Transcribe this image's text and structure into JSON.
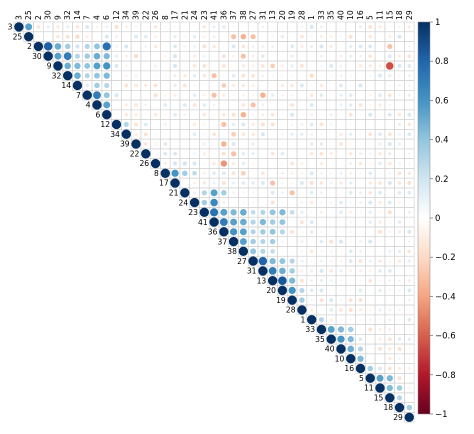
{
  "chart_data": {
    "type": "heatmap",
    "style": "corrplot-circle-upper-triangle",
    "variables": [
      "3",
      "25",
      "2",
      "30",
      "9",
      "32",
      "14",
      "7",
      "4",
      "6",
      "12",
      "34",
      "39",
      "22",
      "26",
      "8",
      "17",
      "21",
      "24",
      "23",
      "41",
      "36",
      "37",
      "38",
      "27",
      "31",
      "13",
      "20",
      "19",
      "28",
      "1",
      "33",
      "35",
      "40",
      "10",
      "16",
      "5",
      "11",
      "15",
      "18",
      "29"
    ],
    "colorbar": {
      "min": -1,
      "max": 1,
      "ticks": [
        1,
        0.8,
        0.6,
        0.4,
        0.2,
        0,
        -0.2,
        -0.4,
        -0.6,
        -0.8,
        -1
      ],
      "tick_labels": [
        "1",
        "0.8",
        "0.6",
        "0.4",
        "0.2",
        "0",
        "−0.2",
        "−0.4",
        "−0.6",
        "−0.8",
        "−1"
      ],
      "positive_color": "#053061",
      "neutral_color": "#ffffff",
      "negative_color": "#67001f"
    },
    "grid": true,
    "legend_position": "right",
    "correlations": [
      [
        0,
        1,
        0.55
      ],
      [
        2,
        3,
        0.82
      ],
      [
        2,
        4,
        0.5
      ],
      [
        2,
        5,
        0.35
      ],
      [
        2,
        6,
        0.2
      ],
      [
        2,
        7,
        0.3
      ],
      [
        2,
        8,
        0.4
      ],
      [
        2,
        9,
        0.75
      ],
      [
        3,
        4,
        0.55
      ],
      [
        3,
        5,
        0.7
      ],
      [
        3,
        6,
        0.3
      ],
      [
        3,
        7,
        0.35
      ],
      [
        3,
        8,
        0.5
      ],
      [
        3,
        9,
        0.45
      ],
      [
        4,
        5,
        0.5
      ],
      [
        4,
        6,
        0.45
      ],
      [
        4,
        7,
        0.4
      ],
      [
        4,
        8,
        0.55
      ],
      [
        4,
        9,
        0.6
      ],
      [
        5,
        6,
        0.5
      ],
      [
        5,
        7,
        0.3
      ],
      [
        5,
        8,
        0.4
      ],
      [
        5,
        9,
        0.45
      ],
      [
        6,
        8,
        0.35
      ],
      [
        6,
        9,
        0.3
      ],
      [
        7,
        8,
        0.7
      ],
      [
        7,
        9,
        0.4
      ],
      [
        8,
        9,
        0.55
      ],
      [
        10,
        11,
        0.3
      ],
      [
        14,
        17,
        0.2
      ],
      [
        15,
        16,
        0.6
      ],
      [
        15,
        17,
        0.35
      ],
      [
        15,
        18,
        0.25
      ],
      [
        17,
        19,
        0.3
      ],
      [
        17,
        20,
        0.55
      ],
      [
        17,
        21,
        0.35
      ],
      [
        18,
        19,
        0.35
      ],
      [
        18,
        20,
        0.65
      ],
      [
        19,
        20,
        0.75
      ],
      [
        19,
        21,
        0.55
      ],
      [
        19,
        22,
        0.45
      ],
      [
        19,
        23,
        0.5
      ],
      [
        19,
        24,
        0.25
      ],
      [
        19,
        25,
        0.3
      ],
      [
        19,
        26,
        0.4
      ],
      [
        19,
        27,
        0.45
      ],
      [
        19,
        28,
        0.25
      ],
      [
        20,
        21,
        0.7
      ],
      [
        20,
        22,
        0.55
      ],
      [
        20,
        23,
        0.5
      ],
      [
        20,
        24,
        0.3
      ],
      [
        20,
        25,
        0.45
      ],
      [
        20,
        26,
        0.35
      ],
      [
        20,
        27,
        0.4
      ],
      [
        21,
        22,
        0.6
      ],
      [
        21,
        23,
        0.55
      ],
      [
        21,
        24,
        0.3
      ],
      [
        21,
        25,
        0.35
      ],
      [
        21,
        26,
        0.4
      ],
      [
        21,
        27,
        0.3
      ],
      [
        22,
        23,
        0.55
      ],
      [
        22,
        24,
        0.35
      ],
      [
        22,
        25,
        0.3
      ],
      [
        22,
        26,
        0.35
      ],
      [
        23,
        24,
        0.4
      ],
      [
        23,
        25,
        0.3
      ],
      [
        23,
        26,
        0.25
      ],
      [
        24,
        25,
        0.8
      ],
      [
        24,
        26,
        0.45
      ],
      [
        24,
        27,
        0.4
      ],
      [
        24,
        28,
        0.3
      ],
      [
        25,
        26,
        0.7
      ],
      [
        25,
        27,
        0.5
      ],
      [
        25,
        28,
        0.35
      ],
      [
        26,
        27,
        0.85
      ],
      [
        26,
        28,
        0.45
      ],
      [
        27,
        28,
        0.6
      ],
      [
        27,
        29,
        0.3
      ],
      [
        28,
        29,
        0.35
      ],
      [
        30,
        31,
        0.3
      ],
      [
        31,
        32,
        0.55
      ],
      [
        31,
        33,
        0.45
      ],
      [
        31,
        34,
        0.35
      ],
      [
        32,
        33,
        0.6
      ],
      [
        32,
        34,
        0.45
      ],
      [
        33,
        34,
        0.5
      ],
      [
        33,
        35,
        0.3
      ],
      [
        34,
        35,
        0.45
      ],
      [
        35,
        36,
        0.35
      ],
      [
        36,
        37,
        0.55
      ],
      [
        36,
        38,
        0.45
      ],
      [
        37,
        38,
        0.45
      ],
      [
        37,
        39,
        0.35
      ],
      [
        38,
        39,
        0.3
      ],
      [
        39,
        40,
        0.35
      ],
      [
        0,
        2,
        -0.15
      ],
      [
        1,
        6,
        -0.2
      ],
      [
        1,
        22,
        -0.3
      ],
      [
        1,
        23,
        -0.35
      ],
      [
        1,
        24,
        -0.3
      ],
      [
        3,
        12,
        -0.2
      ],
      [
        3,
        23,
        -0.3
      ],
      [
        4,
        38,
        -0.65
      ],
      [
        5,
        20,
        -0.3
      ],
      [
        6,
        21,
        -0.25
      ],
      [
        7,
        20,
        -0.3
      ],
      [
        7,
        25,
        -0.35
      ],
      [
        8,
        24,
        -0.3
      ],
      [
        9,
        23,
        -0.35
      ],
      [
        10,
        21,
        -0.3
      ],
      [
        11,
        22,
        -0.25
      ],
      [
        12,
        21,
        -0.35
      ],
      [
        13,
        22,
        -0.3
      ],
      [
        14,
        21,
        -0.45
      ],
      [
        15,
        23,
        -0.25
      ],
      [
        16,
        26,
        -0.3
      ],
      [
        17,
        28,
        -0.3
      ],
      [
        4,
        26,
        -0.25
      ],
      [
        5,
        30,
        -0.2
      ],
      [
        2,
        38,
        -0.3
      ]
    ]
  }
}
